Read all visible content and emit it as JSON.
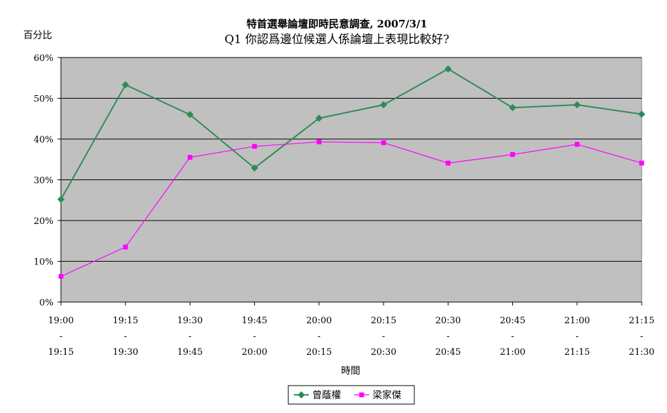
{
  "chart_data": {
    "type": "line",
    "title": "特首選舉論壇即時民意調查, 2007/3/1",
    "subtitle": "Q1 你認爲邊位候選人係論壇上表現比較好?",
    "ylabel": "百分比",
    "xlabel": "時間",
    "ylim": [
      0,
      60
    ],
    "yticks": [
      "0%",
      "10%",
      "20%",
      "30%",
      "40%",
      "50%",
      "60%"
    ],
    "grid": true,
    "legend_position": "bottom",
    "categories": [
      {
        "start": "19:00",
        "sep": "-",
        "end": "19:15"
      },
      {
        "start": "19:15",
        "sep": "-",
        "end": "19:30"
      },
      {
        "start": "19:30",
        "sep": "-",
        "end": "19:45"
      },
      {
        "start": "19:45",
        "sep": "-",
        "end": "20:00"
      },
      {
        "start": "20:00",
        "sep": "-",
        "end": "20:15"
      },
      {
        "start": "20:15",
        "sep": "-",
        "end": "20:30"
      },
      {
        "start": "20:30",
        "sep": "-",
        "end": "20:45"
      },
      {
        "start": "20:45",
        "sep": "-",
        "end": "21:00"
      },
      {
        "start": "21:00",
        "sep": "-",
        "end": "21:15"
      },
      {
        "start": "21:15",
        "sep": "-",
        "end": "21:30"
      }
    ],
    "series": [
      {
        "name": "曾蔭權",
        "color": "#2e8b57",
        "marker": "diamond",
        "values": [
          25.2,
          53.3,
          46.0,
          32.9,
          45.1,
          48.4,
          57.2,
          47.7,
          48.4,
          46.1
        ]
      },
      {
        "name": "梁家傑",
        "color": "#ff00ff",
        "marker": "square",
        "values": [
          6.3,
          13.5,
          35.5,
          38.2,
          39.3,
          39.1,
          34.1,
          36.2,
          38.7,
          34.1
        ]
      }
    ],
    "plot_background": "#c0c0c0"
  }
}
